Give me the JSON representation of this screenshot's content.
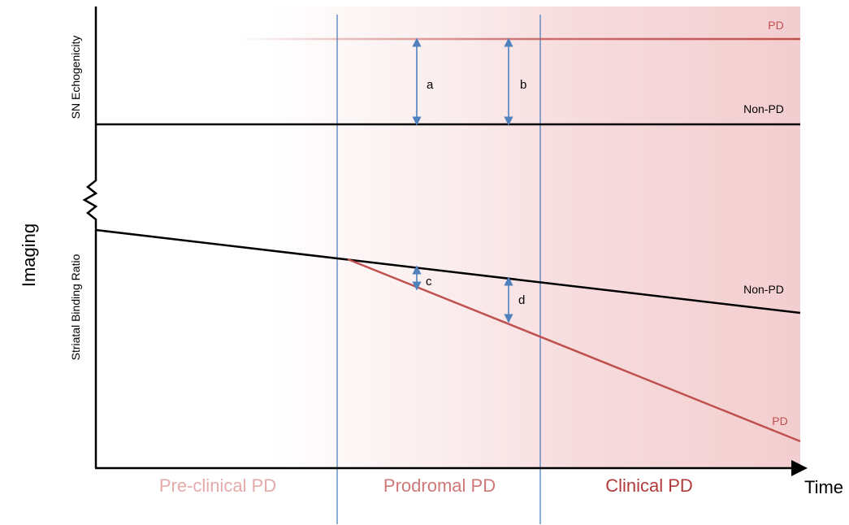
{
  "y_axis_title": "Imaging",
  "x_axis_title": "Time",
  "top_panel": {
    "axis_label": "SN Echogenicity",
    "pd_label": "PD",
    "non_pd_label": "Non-PD"
  },
  "bottom_panel": {
    "axis_label": "Striatal Binding Ratio",
    "pd_label": "PD",
    "non_pd_label": "Non-PD"
  },
  "phases": [
    {
      "label": "Pre-clinical PD",
      "color": "#e6aaaa"
    },
    {
      "label": "Prodromal PD",
      "color": "#d07878"
    },
    {
      "label": "Clinical PD",
      "color": "#b03a3a"
    }
  ],
  "differences": [
    {
      "label": "a"
    },
    {
      "label": "b"
    },
    {
      "label": "c"
    },
    {
      "label": "d"
    }
  ],
  "colors": {
    "pd_line": "#c0504d",
    "non_pd_line": "#000000",
    "phase_divider": "#4f81bd",
    "difference_arrow": "#4f81bd",
    "shading": "#e8a0a4"
  }
}
